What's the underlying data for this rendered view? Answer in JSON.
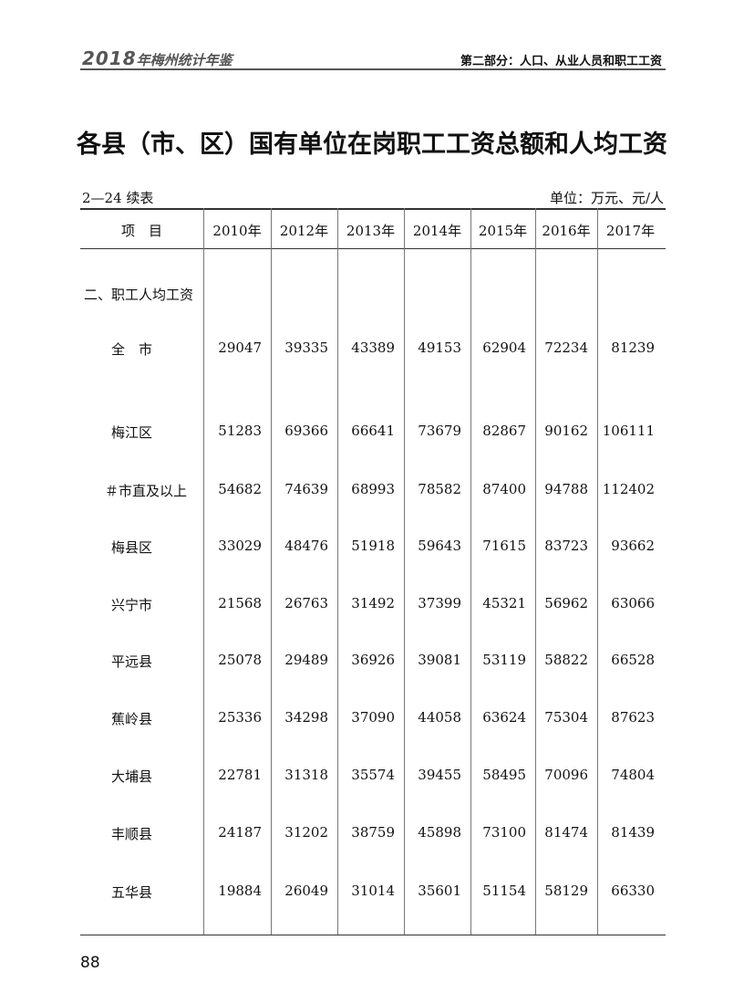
{
  "header": {
    "book_year": "2018",
    "book_title": "年梅州统计年鉴",
    "section": "第二部分：人口、从业人员和职工工资"
  },
  "title": "各县（市、区）国有单位在岗职工工资总额和人均工资",
  "table_no": "2—24 续表",
  "unit": "单位：万元、元/人",
  "columns": [
    "项　目",
    "2010年",
    "2012年",
    "2013年",
    "2014年",
    "2015年",
    "2016年",
    "2017年"
  ],
  "section_label": "二、职工人均工资",
  "rows": [
    {
      "label": "全　市",
      "values": [
        "29047",
        "39335",
        "43389",
        "49153",
        "62904",
        "72234",
        "81239"
      ]
    },
    {
      "label": "梅江区",
      "values": [
        "51283",
        "69366",
        "66641",
        "73679",
        "82867",
        "90162",
        "106111"
      ]
    },
    {
      "label": "＃市直及以上",
      "values": [
        "54682",
        "74639",
        "68993",
        "78582",
        "87400",
        "94788",
        "112402"
      ]
    },
    {
      "label": "梅县区",
      "values": [
        "33029",
        "48476",
        "51918",
        "59643",
        "71615",
        "83723",
        "93662"
      ]
    },
    {
      "label": "兴宁市",
      "values": [
        "21568",
        "26763",
        "31492",
        "37399",
        "45321",
        "56962",
        "63066"
      ]
    },
    {
      "label": "平远县",
      "values": [
        "25078",
        "29489",
        "36926",
        "39081",
        "53119",
        "58822",
        "66528"
      ]
    },
    {
      "label": "蕉岭县",
      "values": [
        "25336",
        "34298",
        "37090",
        "44058",
        "63624",
        "75304",
        "87623"
      ]
    },
    {
      "label": "大埔县",
      "values": [
        "22781",
        "31318",
        "35574",
        "39455",
        "58495",
        "70096",
        "74804"
      ]
    },
    {
      "label": "丰顺县",
      "values": [
        "24187",
        "31202",
        "38759",
        "45898",
        "73100",
        "81474",
        "81439"
      ]
    },
    {
      "label": "五华县",
      "values": [
        "19884",
        "26049",
        "31014",
        "35601",
        "51154",
        "58129",
        "66330"
      ]
    }
  ],
  "page_number": "88"
}
